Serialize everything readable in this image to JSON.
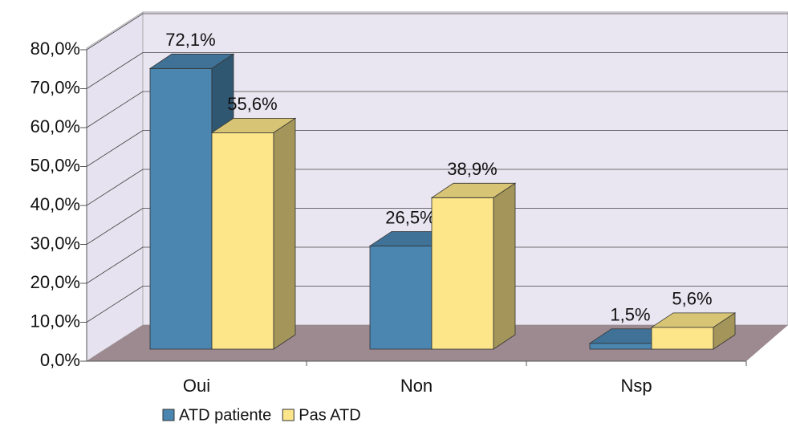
{
  "chart_data": {
    "type": "bar3d",
    "categories": [
      "Oui",
      "Non",
      "Nsp"
    ],
    "series": [
      {
        "name": "ATD patiente",
        "color": "#4a86b0",
        "values": [
          72.1,
          26.5,
          1.5
        ],
        "value_labels": [
          "72,1%",
          "26,5%",
          "1,5%"
        ]
      },
      {
        "name": "Pas ATD",
        "color": "#fde68a",
        "values": [
          55.6,
          38.9,
          5.6
        ],
        "value_labels": [
          "55,6%",
          "38,9%",
          "5,6%"
        ]
      }
    ],
    "ylim": [
      0,
      80
    ],
    "yticks": [
      {
        "value": 0,
        "label": "0,0%"
      },
      {
        "value": 10,
        "label": "10,0%"
      },
      {
        "value": 20,
        "label": "20,0%"
      },
      {
        "value": 30,
        "label": "30,0%"
      },
      {
        "value": 40,
        "label": "40,0%"
      },
      {
        "value": 50,
        "label": "50,0%"
      },
      {
        "value": 60,
        "label": "60,0%"
      },
      {
        "value": 70,
        "label": "70,0%"
      },
      {
        "value": 80,
        "label": "80,0%"
      }
    ],
    "grid": true,
    "legend": "bottom"
  }
}
